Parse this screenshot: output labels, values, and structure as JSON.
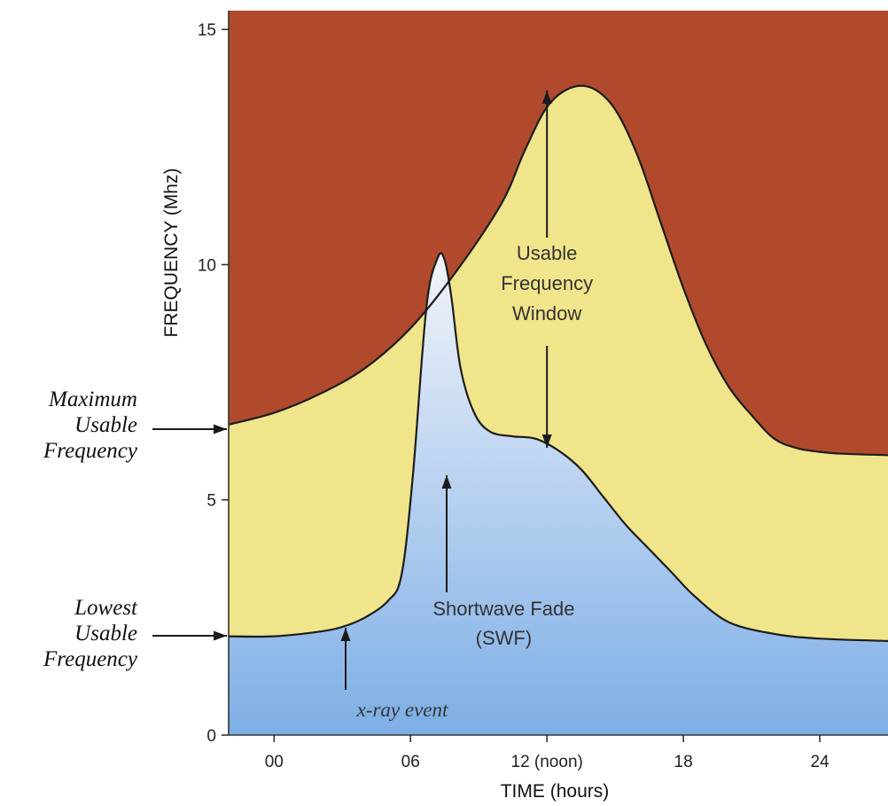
{
  "chart_data": {
    "type": "area",
    "xlabel": "TIME (hours)",
    "ylabel": "FREQUENCY (Mhz)",
    "xlim": [
      -2,
      27
    ],
    "ylim": [
      0,
      15.4
    ],
    "grid": false,
    "x_ticks": [
      {
        "value": 0,
        "label": "00"
      },
      {
        "value": 6,
        "label": "06"
      },
      {
        "value": 12,
        "label": "12 (noon)"
      },
      {
        "value": 18,
        "label": "18"
      },
      {
        "value": 24,
        "label": "24"
      }
    ],
    "y_ticks": [
      {
        "value": 0,
        "label": "0"
      },
      {
        "value": 5,
        "label": "5"
      },
      {
        "value": 10,
        "label": "10"
      },
      {
        "value": 15,
        "label": "15"
      }
    ],
    "series": [
      {
        "name": "Maximum Usable Frequency",
        "color": "#f0e58a",
        "x": [
          -2,
          0,
          2,
          4,
          6,
          8,
          10,
          11,
          12,
          13,
          14,
          15,
          16,
          17,
          18,
          19,
          20,
          21,
          22,
          23,
          24,
          25,
          27
        ],
        "values": [
          6.6,
          6.85,
          7.25,
          7.8,
          8.65,
          9.85,
          11.3,
          12.4,
          13.35,
          13.75,
          13.75,
          13.3,
          12.3,
          10.9,
          9.5,
          8.3,
          7.4,
          6.8,
          6.3,
          6.1,
          6.02,
          5.98,
          5.95
        ]
      },
      {
        "name": "Lowest Usable Frequency",
        "color": "#a8c6ec",
        "x": [
          -2,
          0,
          2,
          3,
          4,
          5,
          5.6,
          6.1,
          6.7,
          7.2,
          7.5,
          7.8,
          8.2,
          8.8,
          9.5,
          10.5,
          11.5,
          12.5,
          13.5,
          14.5,
          15.5,
          16.5,
          17.5,
          18.5,
          20,
          22,
          24,
          27
        ],
        "values": [
          2.1,
          2.1,
          2.2,
          2.3,
          2.5,
          2.85,
          3.4,
          5.5,
          9.1,
          10.15,
          10.1,
          9.3,
          7.8,
          6.85,
          6.45,
          6.35,
          6.3,
          6.05,
          5.65,
          5.05,
          4.45,
          3.95,
          3.45,
          2.95,
          2.4,
          2.15,
          2.05,
          2.0
        ]
      }
    ],
    "side_labels": {
      "muf": [
        "Maximum",
        "Usable",
        "Frequency"
      ],
      "luf": [
        "Lowest",
        "Usable",
        "Frequency"
      ]
    },
    "annotations": {
      "window": [
        "Usable",
        "Frequency",
        "Window"
      ],
      "swf": [
        "Shortwave Fade",
        "(SWF)"
      ],
      "xray": "x-ray event"
    },
    "colors": {
      "above_muf": "#b14a2c",
      "usable_window": "#f0e58a",
      "below_luf_top": "#f2f4fa",
      "below_luf_bottom": "#7daee6",
      "line": "#1c1c1c"
    }
  }
}
